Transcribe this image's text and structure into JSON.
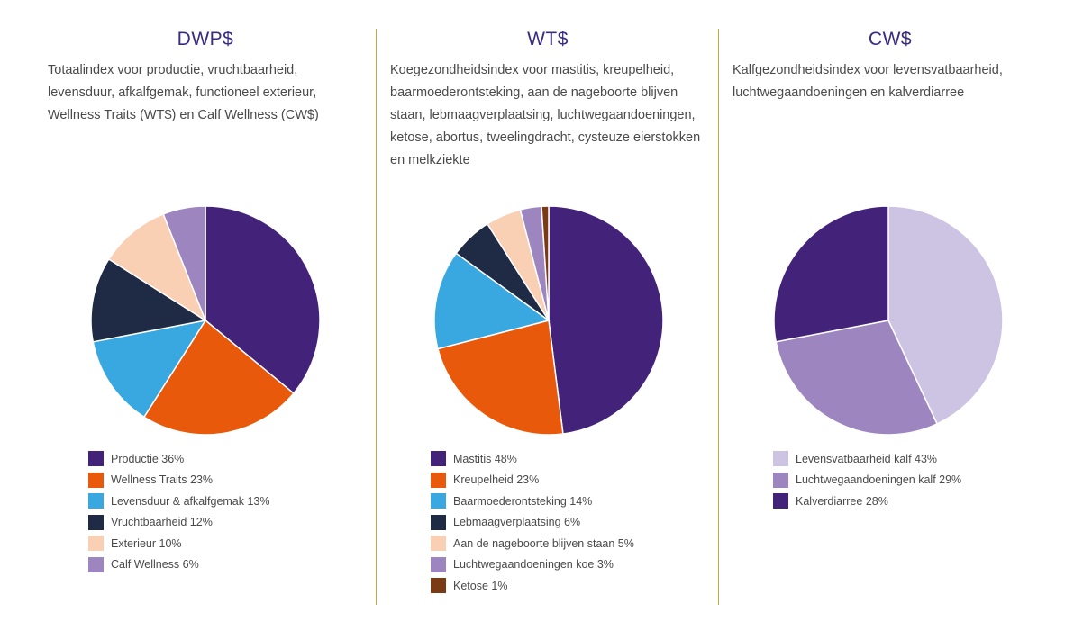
{
  "chart_data": [
    {
      "type": "pie",
      "title": "DWP$",
      "description": "Totaalindex voor productie, vruchtbaarheid, levensduur, afkalfgemak, functioneel exterieur, Wellness Traits (WT$) en Calf Wellness (CW$)",
      "slices": [
        {
          "label": "Productie 36%",
          "value": 36,
          "color": "#432279"
        },
        {
          "label": "Wellness Traits 23%",
          "value": 23,
          "color": "#e8590c"
        },
        {
          "label": "Levensduur & afkalfgemak 13%",
          "value": 13,
          "color": "#3aa8e0"
        },
        {
          "label": "Vruchtbaarheid 12%",
          "value": 12,
          "color": "#1f2a44"
        },
        {
          "label": "Exterieur 10%",
          "value": 10,
          "color": "#f9d0b4"
        },
        {
          "label": "Calf Wellness 6%",
          "value": 6,
          "color": "#9d86c0"
        }
      ]
    },
    {
      "type": "pie",
      "title": "WT$",
      "description": "Koegezondheidsindex voor mastitis, kreupelheid, baarmoederontsteking, aan de nageboorte blijven staan, lebmaagverplaatsing, luchtwegaandoeningen, ketose, abortus, tweelingdracht, cysteuze eierstokken en melkziekte",
      "slices": [
        {
          "label": "Mastitis 48%",
          "value": 48,
          "color": "#432279"
        },
        {
          "label": "Kreupelheid 23%",
          "value": 23,
          "color": "#e8590c"
        },
        {
          "label": "Baarmoederontsteking 14%",
          "value": 14,
          "color": "#3aa8e0"
        },
        {
          "label": "Lebmaagverplaatsing 6%",
          "value": 6,
          "color": "#1f2a44"
        },
        {
          "label": "Aan de nageboorte blijven staan 5%",
          "value": 5,
          "color": "#f9d0b4"
        },
        {
          "label": "Luchtwegaandoeningen koe 3%",
          "value": 3,
          "color": "#9d86c0"
        },
        {
          "label": "Ketose 1%",
          "value": 1,
          "color": "#7a3a14"
        }
      ]
    },
    {
      "type": "pie",
      "title": "CW$",
      "description": "Kalfgezondheidsindex voor levensvatbaarheid, luchtwegaandoeningen en kalverdiarree",
      "slices": [
        {
          "label": "Levensvatbaarheid kalf 43%",
          "value": 43,
          "color": "#cdc3e3"
        },
        {
          "label": "Luchtwegaandoeningen kalf 29%",
          "value": 29,
          "color": "#9d86c0"
        },
        {
          "label": "Kalverdiarree 28%",
          "value": 28,
          "color": "#432279"
        }
      ]
    }
  ]
}
